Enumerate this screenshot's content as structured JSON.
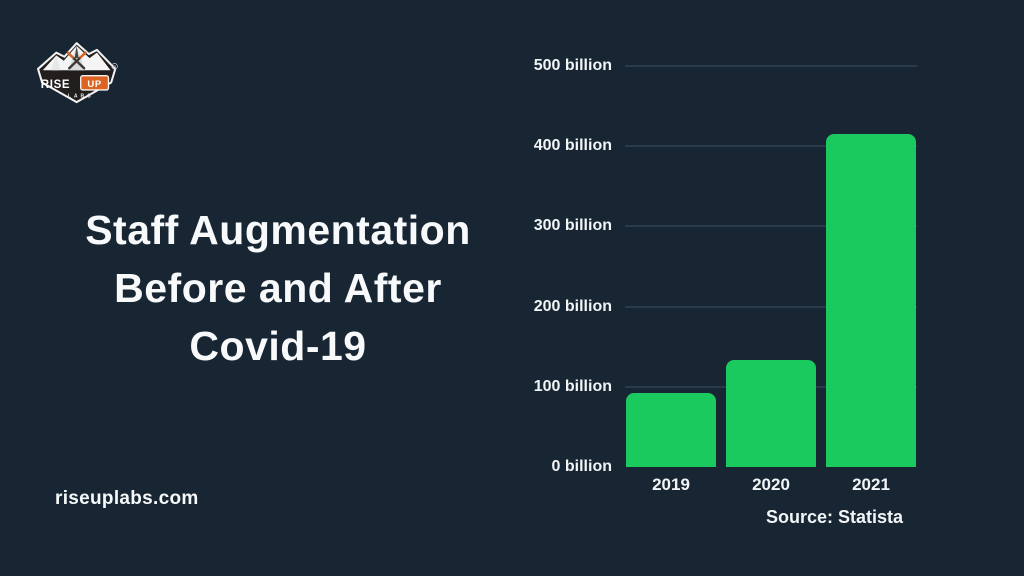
{
  "page": {
    "background": "#172632"
  },
  "logo": {
    "brand_rise": "RISE",
    "brand_up": "UP",
    "brand_labs": "LABS",
    "registered_mark": "R",
    "colors": {
      "orange": "#DD6420",
      "badge_dark": "#221E1D",
      "snow_white": "#F4F4F4"
    }
  },
  "title": {
    "lines": [
      "Staff Augmentation",
      "Before and After",
      "Covid-19"
    ]
  },
  "footer": {
    "website": "riseuplabs.com"
  },
  "chart_data": {
    "type": "bar",
    "title": "Staff Augmentation Before and After Covid-19",
    "categories": [
      "2019",
      "2020",
      "2021"
    ],
    "values": [
      92,
      133,
      415
    ],
    "unit": "billion",
    "xlabel": "",
    "ylabel": "",
    "y_ticks": [
      0,
      100,
      200,
      300,
      400,
      500
    ],
    "y_tick_suffix": " billion",
    "ylim": [
      0,
      500
    ],
    "bar_color": "#1BCA5E",
    "grid": true,
    "legend": false,
    "source": "Source: Statista"
  }
}
